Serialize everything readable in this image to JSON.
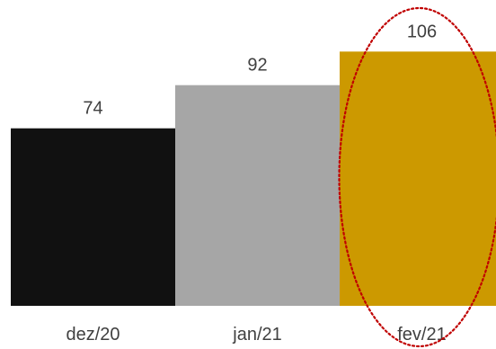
{
  "chart_data": {
    "type": "bar",
    "categories": [
      "dez/20",
      "jan/21",
      "fev/21"
    ],
    "values": [
      74,
      92,
      106
    ],
    "value_labels": [
      "74",
      "92",
      "106"
    ],
    "bar_colors": [
      "#111111",
      "#a6a6a6",
      "#cc9900"
    ],
    "ylim": [
      0,
      120
    ],
    "title": "",
    "xlabel": "",
    "ylabel": "",
    "grid": false,
    "legend": "none",
    "highlight": {
      "category": "fev/21",
      "shape": "dotted-ellipse",
      "color": "#c00000"
    }
  }
}
